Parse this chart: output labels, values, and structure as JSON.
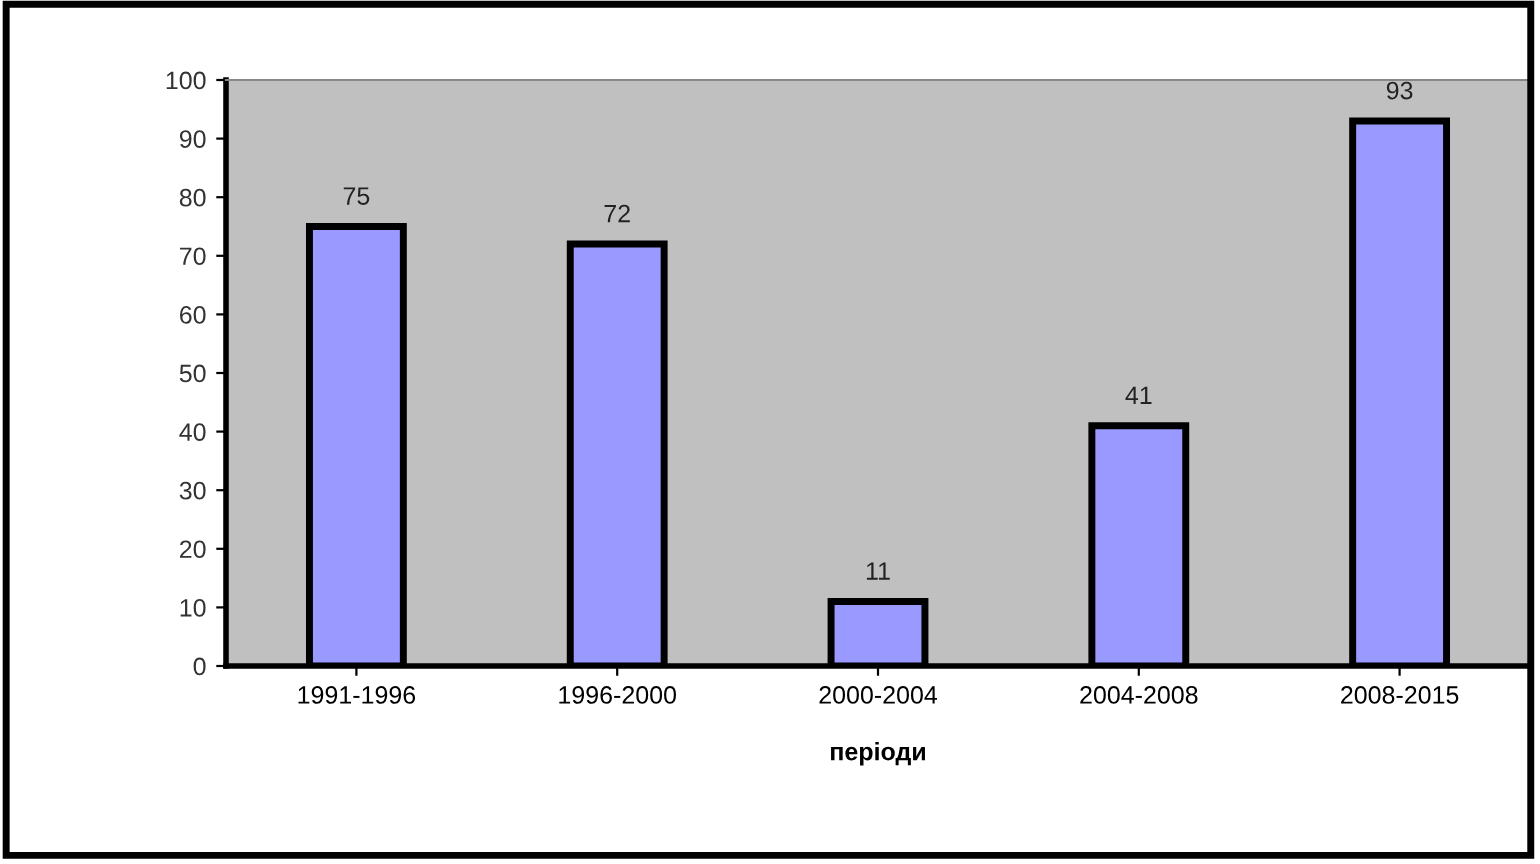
{
  "chart_data": {
    "type": "bar",
    "xlabel": "періоди",
    "categories": [
      "1991-1996",
      "1996-2000",
      "2000-2004",
      "2004-2008",
      "2008-2015"
    ],
    "values": [
      75,
      72,
      11,
      41,
      93
    ],
    "color": "#9999ff",
    "ylim": [
      0,
      100
    ],
    "yticks": [
      0,
      10,
      20,
      30,
      40,
      50,
      60,
      70,
      80,
      90,
      100
    ],
    "grid": false,
    "data_labels": true
  }
}
